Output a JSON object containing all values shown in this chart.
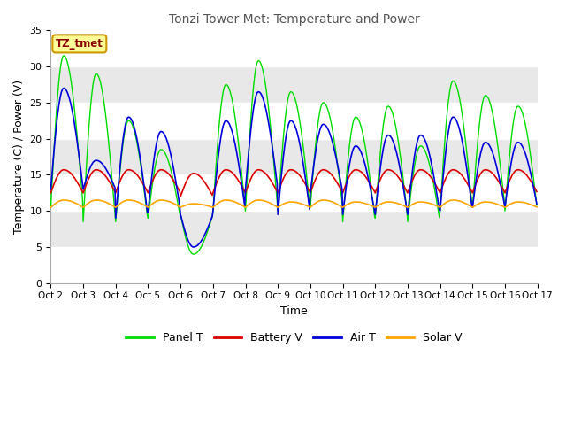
{
  "title": "Tonzi Tower Met: Temperature and Power",
  "xlabel": "Time",
  "ylabel": "Temperature (C) / Power (V)",
  "ylim": [
    0,
    35
  ],
  "yticks": [
    0,
    5,
    10,
    15,
    20,
    25,
    30,
    35
  ],
  "x_labels": [
    "Oct 2",
    "Oct 3",
    "Oct 4",
    "Oct 5",
    "Oct 6",
    "Oct 7",
    "Oct 8",
    "Oct 9",
    "Oct 10",
    "Oct 11",
    "Oct 12",
    "Oct 13",
    "Oct 14",
    "Oct 15",
    "Oct 16",
    "Oct 17"
  ],
  "annotation_text": "TZ_tmet",
  "annotation_color": "#8B0000",
  "annotation_bg": "#FFFF99",
  "annotation_edge": "#CC9900",
  "colors": {
    "panel_t": "#00DD00",
    "battery_v": "#DD0000",
    "air_t": "#0000DD",
    "solar_v": "#FFA500"
  },
  "legend_labels": [
    "Panel T",
    "Battery V",
    "Air T",
    "Solar V"
  ],
  "plot_bg": "#E8E8E8",
  "fig_bg": "#FFFFFF",
  "grid_color": "#FFFFFF",
  "band_color": "#D8D8D8",
  "n_days": 15
}
